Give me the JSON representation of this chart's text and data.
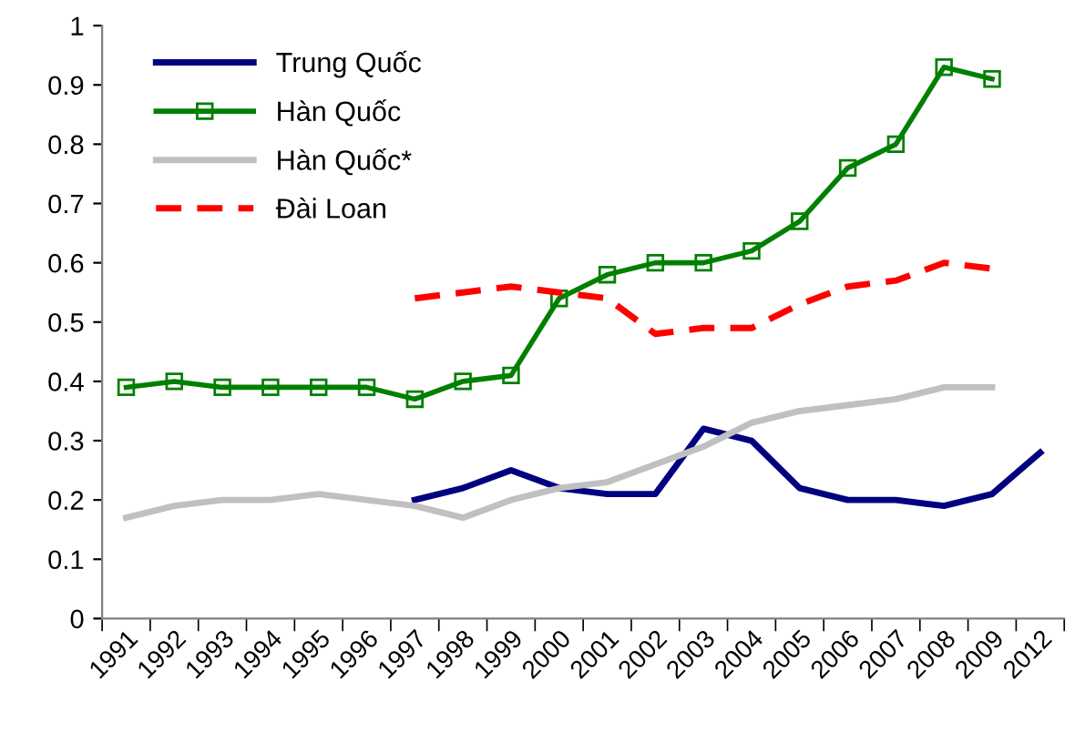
{
  "chart_data": {
    "type": "line",
    "categories": [
      "1991",
      "1992",
      "1993",
      "1994",
      "1995",
      "1996",
      "1997",
      "1998",
      "1999",
      "2000",
      "2001",
      "2002",
      "2003",
      "2004",
      "2005",
      "2006",
      "2007",
      "2008",
      "2009",
      "2012"
    ],
    "series": [
      {
        "name": "Trung Quốc",
        "color": "#000080",
        "marker": "none",
        "line_style": "solid",
        "values": [
          null,
          null,
          null,
          null,
          null,
          null,
          0.2,
          0.22,
          0.25,
          0.22,
          0.21,
          0.21,
          0.32,
          0.3,
          0.22,
          0.2,
          0.2,
          0.19,
          0.21,
          0.28
        ]
      },
      {
        "name": "Hàn Quốc",
        "color": "#008000",
        "marker": "square",
        "line_style": "solid",
        "values": [
          0.39,
          0.4,
          0.39,
          0.39,
          0.39,
          0.39,
          0.37,
          0.4,
          0.41,
          0.54,
          0.58,
          0.6,
          0.6,
          0.62,
          0.67,
          0.76,
          0.8,
          0.93,
          0.91,
          null
        ]
      },
      {
        "name": "Hàn Quốc*",
        "color": "#c0c0c0",
        "marker": "none",
        "line_style": "solid",
        "values": [
          0.17,
          0.19,
          0.2,
          0.2,
          0.21,
          0.2,
          0.19,
          0.17,
          0.2,
          0.22,
          0.23,
          0.26,
          0.29,
          0.33,
          0.35,
          0.36,
          0.37,
          0.39,
          0.39,
          null
        ]
      },
      {
        "name": "Đài Loan",
        "color": "#ff0000",
        "marker": "none",
        "line_style": "dashed",
        "values": [
          null,
          null,
          null,
          null,
          null,
          null,
          0.54,
          0.55,
          0.56,
          0.55,
          0.54,
          0.48,
          0.49,
          0.49,
          0.53,
          0.56,
          0.57,
          0.6,
          0.59,
          null
        ]
      }
    ],
    "ylim": [
      0,
      1
    ],
    "yticks": [
      0,
      0.1,
      0.2,
      0.3,
      0.4,
      0.5,
      0.6,
      0.7,
      0.8,
      0.9,
      1
    ],
    "grid": false,
    "legend": "top left"
  }
}
